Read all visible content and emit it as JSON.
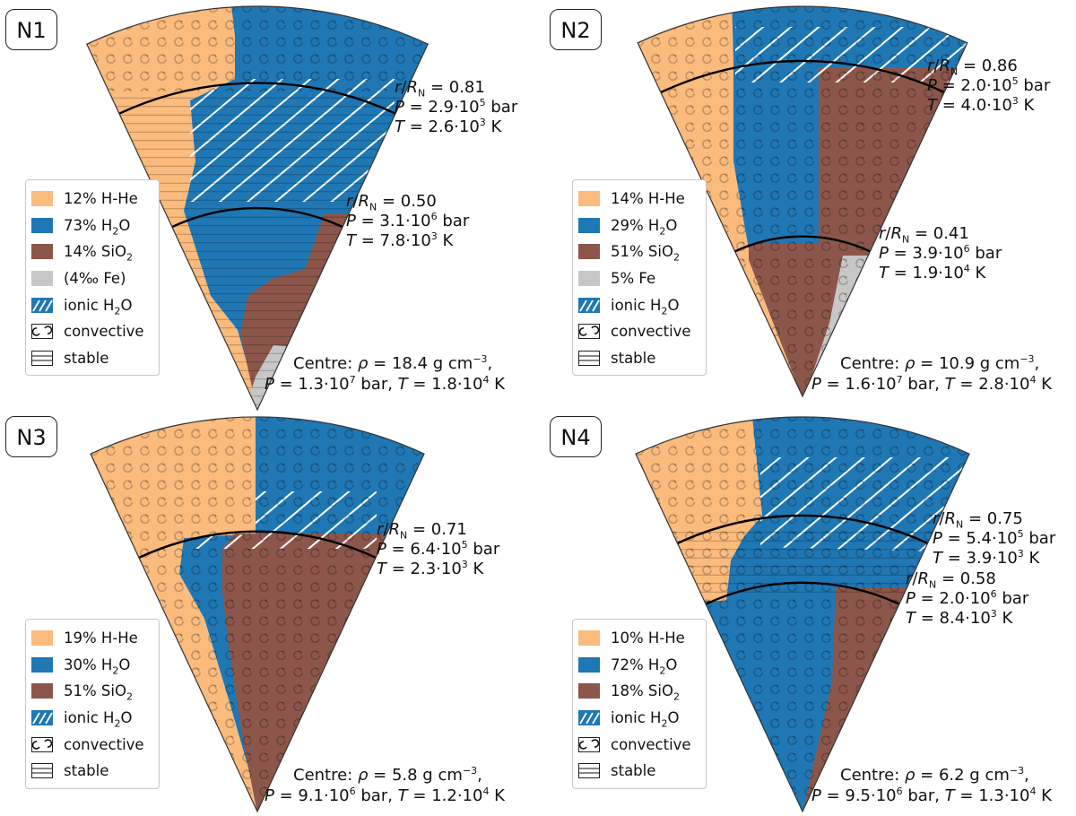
{
  "colors": {
    "hhe": "#fbbb7d",
    "h2o": "#1f77b4",
    "sio2": "#8c564b",
    "fe": "#c7c7c7",
    "boundary": "#000000"
  },
  "panels": [
    {
      "id": "N1",
      "legend": [
        "12% H-He",
        "73% H2O",
        "14% SiO2",
        "(4‰ Fe)",
        "ionic H2O",
        "convective",
        "stable"
      ],
      "boundaries": [
        {
          "r": "0.81",
          "p": "2.9·10",
          "p_exp": "5",
          "p_unit": "bar",
          "t": "2.6·10",
          "t_exp": "3",
          "t_unit": "K"
        },
        {
          "r": "0.50",
          "p": "3.1·10",
          "p_exp": "6",
          "p_unit": "bar",
          "t": "7.8·10",
          "t_exp": "3",
          "t_unit": "K"
        }
      ],
      "centre": {
        "rho": "18.4 g cm",
        "rho_exp": "−3",
        "p": "1.3·10",
        "p_exp": "7",
        "t": "1.8·10",
        "t_exp": "4"
      }
    },
    {
      "id": "N2",
      "legend": [
        "14% H-He",
        "29% H2O",
        "51% SiO2",
        "5% Fe",
        "ionic H2O",
        "convective",
        "stable"
      ],
      "boundaries": [
        {
          "r": "0.86",
          "p": "2.0·10",
          "p_exp": "5",
          "p_unit": "bar",
          "t": "4.0·10",
          "t_exp": "3",
          "t_unit": "K"
        },
        {
          "r": "0.41",
          "p": "3.9·10",
          "p_exp": "6",
          "p_unit": "bar",
          "t": "1.9·10",
          "t_exp": "4",
          "t_unit": "K"
        }
      ],
      "centre": {
        "rho": "10.9 g cm",
        "rho_exp": "−3",
        "p": "1.6·10",
        "p_exp": "7",
        "t": "2.8·10",
        "t_exp": "4"
      }
    },
    {
      "id": "N3",
      "legend": [
        "19% H-He",
        "30% H2O",
        "51% SiO2",
        "ionic H2O",
        "convective",
        "stable"
      ],
      "boundaries": [
        {
          "r": "0.71",
          "p": "6.4·10",
          "p_exp": "5",
          "p_unit": "bar",
          "t": "2.3·10",
          "t_exp": "3",
          "t_unit": "K"
        }
      ],
      "centre": {
        "rho": "5.8 g cm",
        "rho_exp": "−3",
        "p": "9.1·10",
        "p_exp": "6",
        "t": "1.2·10",
        "t_exp": "4"
      }
    },
    {
      "id": "N4",
      "legend": [
        "10% H-He",
        "72% H2O",
        "18% SiO2",
        "ionic H2O",
        "convective",
        "stable"
      ],
      "boundaries": [
        {
          "r": "0.75",
          "p": "5.4·10",
          "p_exp": "5",
          "p_unit": "bar",
          "t": "3.9·10",
          "t_exp": "3",
          "t_unit": "K"
        },
        {
          "r": "0.58",
          "p": "2.0·10",
          "p_exp": "6",
          "p_unit": "bar",
          "t": "8.4·10",
          "t_exp": "3",
          "t_unit": "K"
        }
      ],
      "centre": {
        "rho": "6.2 g cm",
        "rho_exp": "−3",
        "p": "9.5·10",
        "p_exp": "6",
        "t": "1.3·10",
        "t_exp": "4"
      }
    }
  ]
}
